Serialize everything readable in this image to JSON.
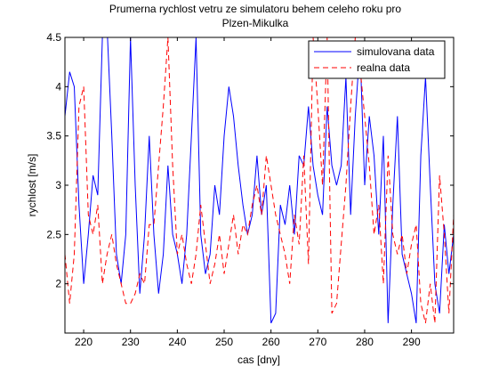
{
  "chart_data": {
    "type": "line",
    "title_lines": [
      "Prumerna rychlost vetru ze simulatoru behem celeho roku pro",
      "Plzen-Mikulka"
    ],
    "xlabel": "cas [dny]",
    "ylabel": "rychlost [m/s]",
    "xlim": [
      216,
      299
    ],
    "ylim": [
      1.5,
      4.5
    ],
    "xticks": [
      220,
      230,
      240,
      250,
      260,
      270,
      280,
      290
    ],
    "yticks": [
      2,
      2.5,
      3,
      3.5,
      4,
      4.5
    ],
    "legend_position": "top-right",
    "grid": false,
    "series": [
      {
        "name": "simulovana data",
        "color": "#0000ff",
        "style": "solid",
        "points": [
          [
            216,
            3.7
          ],
          [
            217,
            4.15
          ],
          [
            218,
            4.0
          ],
          [
            219,
            2.8
          ],
          [
            220,
            2.0
          ],
          [
            221,
            2.5
          ],
          [
            222,
            3.1
          ],
          [
            223,
            2.9
          ],
          [
            224,
            4.5
          ],
          [
            225,
            4.6
          ],
          [
            226,
            3.5
          ],
          [
            227,
            2.3
          ],
          [
            228,
            2.0
          ],
          [
            229,
            2.5
          ],
          [
            230,
            4.5
          ],
          [
            231,
            3.0
          ],
          [
            232,
            1.9
          ],
          [
            233,
            2.5
          ],
          [
            234,
            3.5
          ],
          [
            235,
            2.5
          ],
          [
            236,
            1.9
          ],
          [
            237,
            2.3
          ],
          [
            238,
            3.2
          ],
          [
            239,
            2.5
          ],
          [
            240,
            2.3
          ],
          [
            241,
            2.0
          ],
          [
            242,
            2.5
          ],
          [
            243,
            3.5
          ],
          [
            244,
            4.5
          ],
          [
            245,
            2.5
          ],
          [
            246,
            2.1
          ],
          [
            247,
            2.3
          ],
          [
            248,
            3.0
          ],
          [
            249,
            2.7
          ],
          [
            250,
            3.5
          ],
          [
            251,
            4.0
          ],
          [
            252,
            3.7
          ],
          [
            253,
            3.2
          ],
          [
            254,
            2.8
          ],
          [
            255,
            2.5
          ],
          [
            256,
            2.7
          ],
          [
            257,
            3.3
          ],
          [
            258,
            2.7
          ],
          [
            259,
            3.0
          ],
          [
            260,
            1.6
          ],
          [
            261,
            1.7
          ],
          [
            262,
            2.8
          ],
          [
            263,
            2.6
          ],
          [
            264,
            3.0
          ],
          [
            265,
            2.5
          ],
          [
            266,
            3.3
          ],
          [
            267,
            3.2
          ],
          [
            268,
            3.8
          ],
          [
            269,
            3.2
          ],
          [
            270,
            2.9
          ],
          [
            271,
            2.7
          ],
          [
            272,
            3.8
          ],
          [
            273,
            3.2
          ],
          [
            274,
            3.0
          ],
          [
            275,
            3.2
          ],
          [
            276,
            4.1
          ],
          [
            277,
            2.7
          ],
          [
            278,
            3.7
          ],
          [
            279,
            4.4
          ],
          [
            280,
            3.0
          ],
          [
            281,
            3.7
          ],
          [
            282,
            3.3
          ],
          [
            283,
            2.5
          ],
          [
            284,
            3.5
          ],
          [
            285,
            1.6
          ],
          [
            286,
            2.8
          ],
          [
            287,
            3.7
          ],
          [
            288,
            2.3
          ],
          [
            289,
            2.1
          ],
          [
            290,
            1.9
          ],
          [
            291,
            1.6
          ],
          [
            292,
            3.3
          ],
          [
            293,
            4.1
          ],
          [
            294,
            3.0
          ],
          [
            295,
            2.0
          ],
          [
            296,
            1.7
          ],
          [
            297,
            2.6
          ],
          [
            298,
            2.1
          ],
          [
            299,
            2.5
          ]
        ]
      },
      {
        "name": "realna data",
        "color": "#ff0000",
        "style": "dashed",
        "points": [
          [
            216,
            2.3
          ],
          [
            217,
            1.8
          ],
          [
            218,
            2.3
          ],
          [
            219,
            3.8
          ],
          [
            220,
            4.0
          ],
          [
            221,
            2.7
          ],
          [
            222,
            2.5
          ],
          [
            223,
            2.8
          ],
          [
            224,
            2.0
          ],
          [
            225,
            2.3
          ],
          [
            226,
            2.5
          ],
          [
            227,
            2.2
          ],
          [
            228,
            2.0
          ],
          [
            229,
            1.8
          ],
          [
            230,
            1.8
          ],
          [
            231,
            1.9
          ],
          [
            232,
            2.1
          ],
          [
            233,
            2.0
          ],
          [
            234,
            2.6
          ],
          [
            235,
            2.6
          ],
          [
            236,
            3.2
          ],
          [
            237,
            3.8
          ],
          [
            238,
            4.5
          ],
          [
            239,
            3.2
          ],
          [
            240,
            2.3
          ],
          [
            241,
            2.5
          ],
          [
            242,
            2.2
          ],
          [
            243,
            2.0
          ],
          [
            244,
            2.3
          ],
          [
            245,
            2.8
          ],
          [
            246,
            2.4
          ],
          [
            247,
            2.0
          ],
          [
            248,
            2.2
          ],
          [
            249,
            2.5
          ],
          [
            250,
            2.1
          ],
          [
            251,
            2.4
          ],
          [
            252,
            2.7
          ],
          [
            253,
            2.3
          ],
          [
            254,
            2.6
          ],
          [
            255,
            2.5
          ],
          [
            256,
            2.8
          ],
          [
            257,
            3.0
          ],
          [
            258,
            2.7
          ],
          [
            259,
            3.3
          ],
          [
            260,
            3.0
          ],
          [
            261,
            2.7
          ],
          [
            262,
            2.5
          ],
          [
            263,
            2.3
          ],
          [
            264,
            2.0
          ],
          [
            265,
            2.7
          ],
          [
            266,
            2.4
          ],
          [
            267,
            3.3
          ],
          [
            268,
            2.2
          ],
          [
            269,
            4.5
          ],
          [
            270,
            3.8
          ],
          [
            271,
            3.0
          ],
          [
            272,
            4.5
          ],
          [
            273,
            1.7
          ],
          [
            274,
            1.8
          ],
          [
            275,
            2.4
          ],
          [
            276,
            3.0
          ],
          [
            277,
            3.8
          ],
          [
            278,
            4.5
          ],
          [
            279,
            4.2
          ],
          [
            280,
            3.7
          ],
          [
            281,
            3.2
          ],
          [
            282,
            2.5
          ],
          [
            283,
            2.8
          ],
          [
            284,
            2.0
          ],
          [
            285,
            3.3
          ],
          [
            286,
            2.5
          ],
          [
            287,
            2.3
          ],
          [
            288,
            2.5
          ],
          [
            289,
            2.1
          ],
          [
            290,
            2.4
          ],
          [
            291,
            2.6
          ],
          [
            292,
            1.8
          ],
          [
            293,
            1.6
          ],
          [
            294,
            2.0
          ],
          [
            295,
            1.6
          ],
          [
            296,
            3.1
          ],
          [
            297,
            2.5
          ],
          [
            298,
            1.7
          ],
          [
            299,
            2.7
          ]
        ]
      }
    ]
  }
}
